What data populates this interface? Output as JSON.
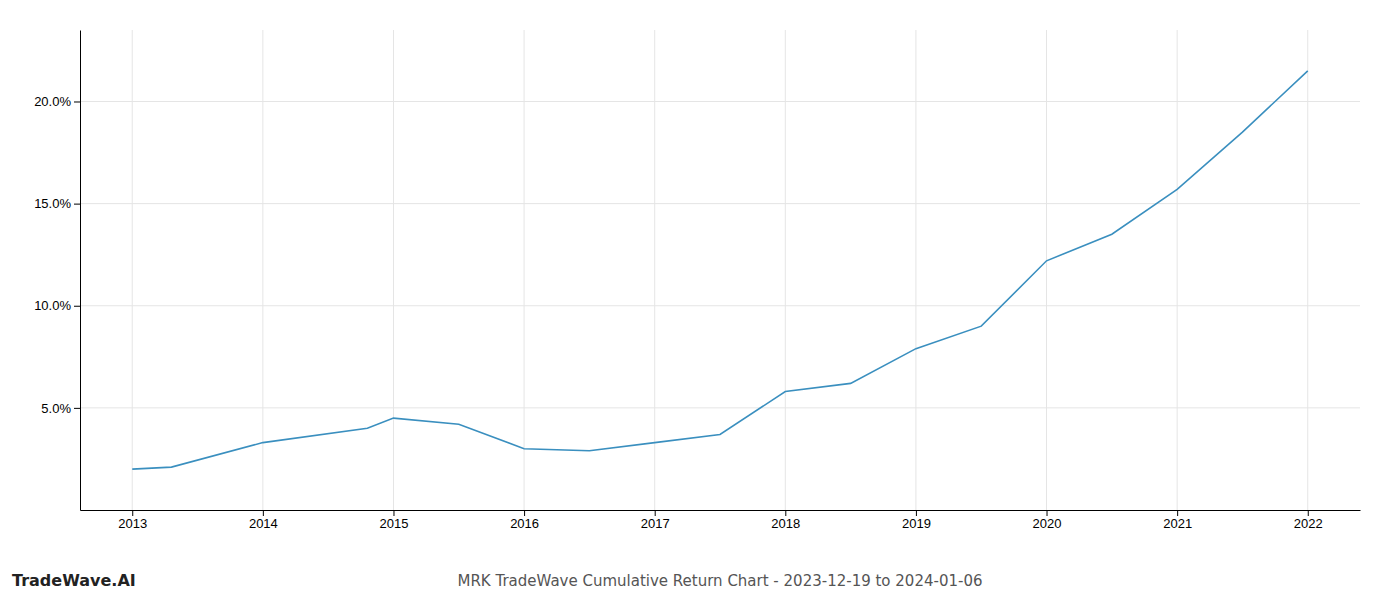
{
  "chart_data": {
    "type": "line",
    "title": "MRK TradeWave Cumulative Return Chart - 2023-12-19 to 2024-01-06",
    "annotations": [
      "TradeWave.AI"
    ],
    "x": [
      2013,
      2013.3,
      2014,
      2014.8,
      2015,
      2015.5,
      2016,
      2016.5,
      2017,
      2017.5,
      2018,
      2018.5,
      2019,
      2019.5,
      2020,
      2020.5,
      2021,
      2021.5,
      2022
    ],
    "values": [
      2.0,
      2.1,
      3.3,
      4.0,
      4.5,
      4.2,
      3.0,
      2.9,
      3.3,
      3.7,
      5.8,
      6.2,
      7.9,
      9.0,
      12.2,
      13.5,
      15.7,
      18.5,
      21.5
    ],
    "color": "#3a8fbf",
    "xlim": [
      2012.6,
      2022.4
    ],
    "ylim": [
      0,
      23.5
    ],
    "xticks": [
      2013,
      2014,
      2015,
      2016,
      2017,
      2018,
      2019,
      2020,
      2021,
      2022
    ],
    "yticks": [
      {
        "value": 5.0,
        "label": "5.0%"
      },
      {
        "value": 10.0,
        "label": "10.0%"
      },
      {
        "value": 15.0,
        "label": "15.0%"
      },
      {
        "value": 20.0,
        "label": "20.0%"
      }
    ],
    "grid": true
  }
}
